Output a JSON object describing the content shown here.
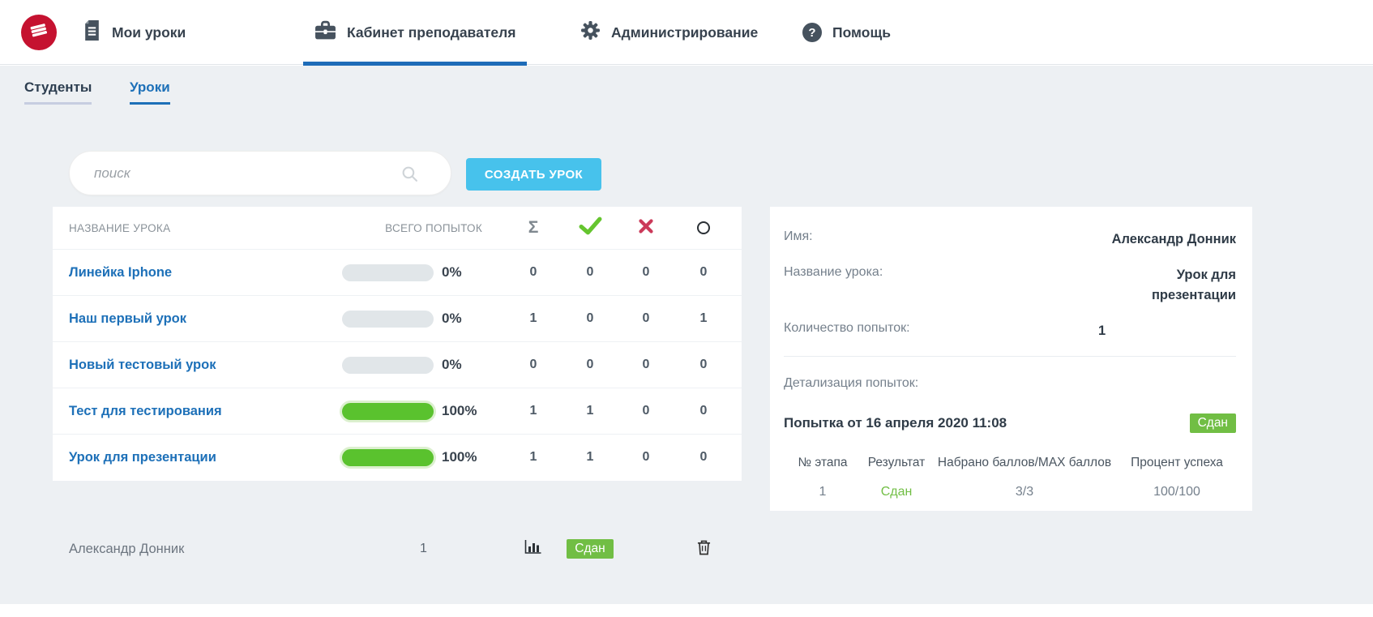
{
  "nav": {
    "items": [
      {
        "label": "Мои уроки",
        "icon": "document-icon",
        "active": false
      },
      {
        "label": "Кабинет преподавателя",
        "icon": "briefcase-icon",
        "active": true
      },
      {
        "label": "Администрирование",
        "icon": "gear-icon",
        "active": false
      },
      {
        "label": "Помощь",
        "icon": "question-circle-icon",
        "active": false
      }
    ]
  },
  "subtabs": [
    {
      "label": "Студенты",
      "active": false
    },
    {
      "label": "Уроки",
      "active": true
    }
  ],
  "search": {
    "placeholder": "поиск"
  },
  "toolbar": {
    "create_lesson_label": "СОЗДАТЬ УРОК"
  },
  "icons": {
    "logo": "book-stack",
    "sum_glyph": "Σ",
    "help_glyph": "?",
    "passed": "green-check",
    "failed": "red-x",
    "pending": "circle-outline",
    "stats": "bar-chart",
    "delete": "trash"
  },
  "lessons_table": {
    "headers": {
      "name": "НАЗВАНИЕ УРОКА",
      "attempts": "ВСЕГО ПОПЫТОК"
    },
    "rows": [
      {
        "name": "Линейка Iphone",
        "progress": 0,
        "percent": "0%",
        "sigma": "0",
        "passed": "0",
        "failed": "0",
        "pending": "0"
      },
      {
        "name": "Наш первый урок",
        "progress": 0,
        "percent": "0%",
        "sigma": "1",
        "passed": "0",
        "failed": "0",
        "pending": "1"
      },
      {
        "name": "Новый тестовый урок",
        "progress": 0,
        "percent": "0%",
        "sigma": "0",
        "passed": "0",
        "failed": "0",
        "pending": "0"
      },
      {
        "name": "Тест для тестирования",
        "progress": 100,
        "percent": "100%",
        "sigma": "1",
        "passed": "1",
        "failed": "0",
        "pending": "0"
      },
      {
        "name": "Урок для презентации",
        "progress": 100,
        "percent": "100%",
        "sigma": "1",
        "passed": "1",
        "failed": "0",
        "pending": "0"
      }
    ]
  },
  "student_row": {
    "name": "Александр Донник",
    "attempts": "1",
    "status": "Сдан"
  },
  "details_panel": {
    "name_label": "Имя:",
    "name_value": "Александр Донник",
    "lesson_label": "Название урока:",
    "lesson_value": "Урок для презентации",
    "attempts_label": "Количество попыток:",
    "attempts_value": "1",
    "detail_label": "Детализация попыток:",
    "attempt_title": "Попытка от 16 апреля 2020 11:08",
    "attempt_status": "Сдан",
    "table": {
      "headers": [
        "№ этапа",
        "Результат",
        "Набрано баллов/MAX баллов",
        "Процент успеха"
      ],
      "row": {
        "stage": "1",
        "result": "Сдан",
        "score": "3/3",
        "percent": "100/100"
      }
    }
  },
  "colors": {
    "accent_blue": "#1d70b8",
    "underline_blue": "#1e6cb8",
    "button_blue": "#47c2ec",
    "progress_green": "#5ac22e",
    "badge_green": "#71be44",
    "error_red": "#cb3a5a",
    "logo_red": "#c51230",
    "bg_gray": "#edf0f3"
  }
}
